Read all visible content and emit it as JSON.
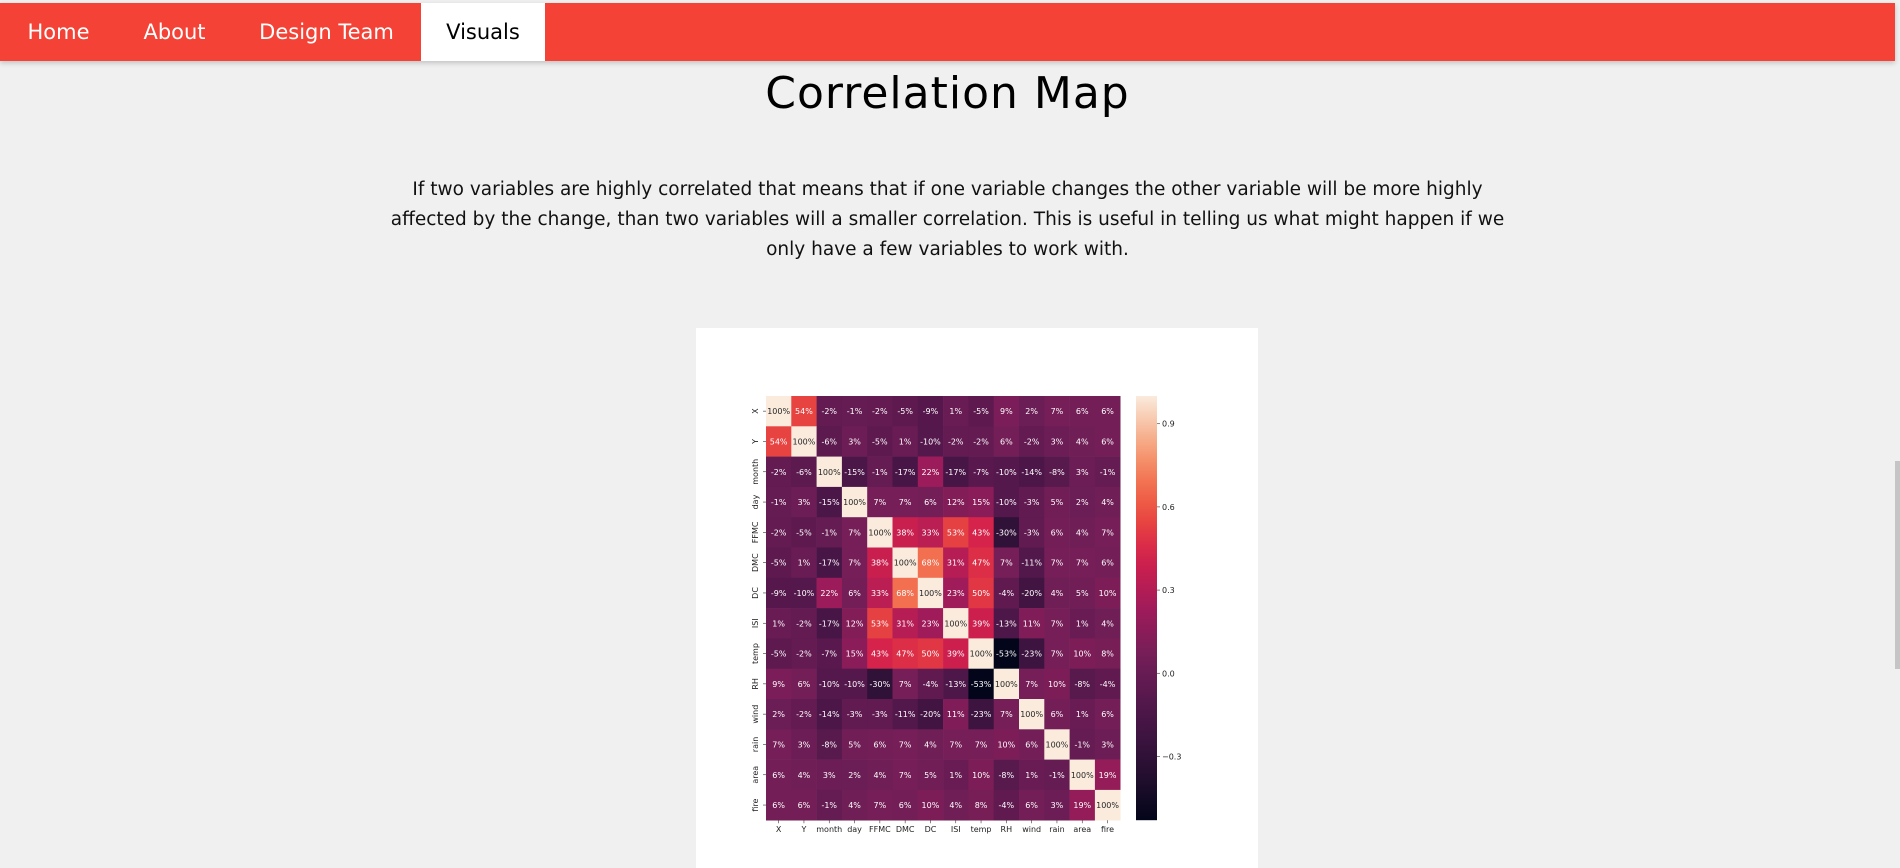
{
  "nav": {
    "items": [
      {
        "label": "Home"
      },
      {
        "label": "About"
      },
      {
        "label": "Design Team"
      },
      {
        "label": "Visuals"
      }
    ],
    "active": "Visuals",
    "bg_color": "#f44336"
  },
  "main": {
    "title": "Correlation Map",
    "description": "If two variables are highly correlated that means that if one variable changes the other variable will be more highly affected by the change, than two variables will a smaller correlation. This is useful in telling us what might happen if we only have a few variables to work with."
  },
  "chart_data": {
    "type": "heatmap",
    "title": "",
    "xlabel": "",
    "ylabel": "",
    "labels": [
      "X",
      "Y",
      "month",
      "day",
      "FFMC",
      "DMC",
      "DC",
      "ISI",
      "temp",
      "RH",
      "wind",
      "rain",
      "area",
      "fire"
    ],
    "values": [
      [
        100,
        54,
        -2,
        -1,
        -2,
        -5,
        -9,
        1,
        -5,
        9,
        2,
        7,
        6,
        6
      ],
      [
        54,
        100,
        -6,
        3,
        -5,
        1,
        -10,
        -2,
        -2,
        6,
        -2,
        3,
        4,
        6
      ],
      [
        -2,
        -6,
        100,
        -15,
        -1,
        -17,
        22,
        -17,
        -7,
        -10,
        -14,
        -8,
        3,
        -1
      ],
      [
        -1,
        3,
        -15,
        100,
        7,
        7,
        6,
        12,
        15,
        -10,
        -3,
        5,
        2,
        4
      ],
      [
        -2,
        -5,
        -1,
        7,
        100,
        38,
        33,
        53,
        43,
        -30,
        -3,
        6,
        4,
        7
      ],
      [
        -5,
        1,
        -17,
        7,
        38,
        100,
        68,
        31,
        47,
        7,
        -11,
        7,
        7,
        6
      ],
      [
        -9,
        -10,
        22,
        6,
        33,
        68,
        100,
        23,
        50,
        -4,
        -20,
        4,
        5,
        10
      ],
      [
        1,
        -2,
        -17,
        12,
        53,
        31,
        23,
        100,
        39,
        -13,
        11,
        7,
        1,
        4
      ],
      [
        -5,
        -2,
        -7,
        15,
        43,
        47,
        50,
        39,
        100,
        -53,
        -23,
        7,
        10,
        8
      ],
      [
        9,
        6,
        -10,
        -10,
        -30,
        7,
        -4,
        -13,
        -53,
        100,
        7,
        10,
        -8,
        -4
      ],
      [
        2,
        -2,
        -14,
        -3,
        -3,
        -11,
        -20,
        11,
        -23,
        7,
        100,
        6,
        1,
        6
      ],
      [
        7,
        3,
        -8,
        5,
        6,
        7,
        4,
        7,
        7,
        10,
        6,
        100,
        -1,
        3
      ],
      [
        6,
        4,
        3,
        2,
        4,
        7,
        5,
        1,
        10,
        -8,
        1,
        -1,
        100,
        19
      ],
      [
        6,
        6,
        -1,
        4,
        7,
        6,
        10,
        4,
        8,
        -4,
        6,
        3,
        19,
        100
      ]
    ],
    "value_format": "percent",
    "colorbar": {
      "range": [
        -0.53,
        1.0
      ],
      "ticks": [
        0.9,
        0.6,
        0.3,
        0.0,
        -0.3
      ],
      "tick_labels": [
        "0.9",
        "0.6",
        "0.3",
        "0.0",
        "−0.3"
      ],
      "colormap": "rocket"
    }
  }
}
